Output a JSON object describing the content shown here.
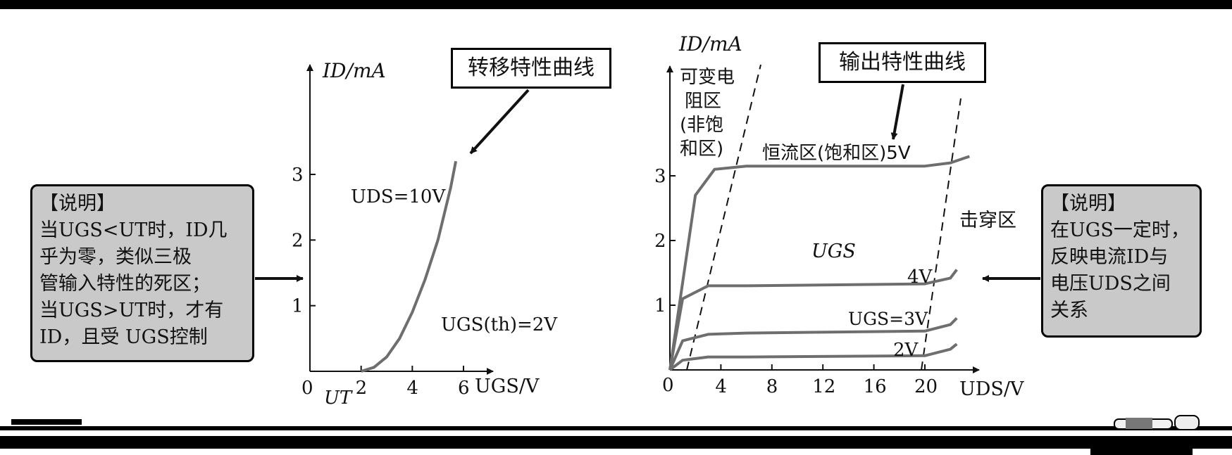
{
  "note_left": {
    "lines": [
      "【说明】",
      "当UGS<UT时，ID几",
      "乎为零，类似三极",
      "管输入特性的死区；",
      "当UGS>UT时，才有",
      "ID，且受 UGS控制"
    ]
  },
  "note_right": {
    "lines": [
      "【说明】",
      "在UGS一定时，",
      "反映电流ID与",
      "电压UDS之间",
      "关系"
    ]
  },
  "transfer": {
    "title": "转移特性曲线",
    "y_axis_label": "ID/mA",
    "x_axis_label": "UGS/V",
    "origin": "0",
    "ut_label": "UT",
    "x_ticks": [
      "2",
      "4",
      "6"
    ],
    "y_ticks": [
      "1",
      "2",
      "3"
    ],
    "uds_label": "UDS=10V",
    "ugs_th_label": "UGS(th)=2V"
  },
  "output": {
    "title": "输出特性曲线",
    "y_axis_label": "ID/mA",
    "x_axis_label": "UDS/V",
    "origin": "0",
    "x_ticks": [
      "4",
      "8",
      "12",
      "16",
      "20"
    ],
    "y_ticks": [
      "1",
      "2",
      "3"
    ],
    "region_variable_lines": [
      "可变电",
      "阻区",
      "(非饱",
      "和区)"
    ],
    "region_constant": "恒流区(饱和区)5V",
    "region_breakdown": "击穿区",
    "ugs_label": "UGS",
    "curve_labels": [
      "4V",
      "UGS=3V",
      "2V"
    ]
  },
  "chart_data": [
    {
      "type": "line",
      "title": "转移特性曲线",
      "xlabel": "UGS/V",
      "ylabel": "ID/mA",
      "xlim": [
        0,
        7
      ],
      "ylim": [
        0,
        4
      ],
      "series": [
        {
          "name": "UDS=10V",
          "x": [
            2,
            2.5,
            3,
            3.5,
            4,
            4.5,
            5,
            5.5,
            5.7
          ],
          "y": [
            0,
            0.06,
            0.22,
            0.5,
            0.9,
            1.4,
            2.0,
            2.8,
            3.2
          ]
        }
      ]
    },
    {
      "type": "line",
      "title": "输出特性曲线",
      "xlabel": "UDS/V",
      "ylabel": "ID/mA",
      "xlim": [
        0,
        24
      ],
      "ylim": [
        0,
        4
      ],
      "series": [
        {
          "name": "5V",
          "x": [
            0,
            2,
            3.5,
            6,
            20,
            22,
            23.5
          ],
          "y": [
            0,
            2.7,
            3.1,
            3.15,
            3.15,
            3.2,
            3.3
          ]
        },
        {
          "name": "4V",
          "x": [
            0,
            1,
            3,
            6,
            20,
            22,
            22.5
          ],
          "y": [
            0,
            1.1,
            1.3,
            1.3,
            1.33,
            1.42,
            1.55
          ]
        },
        {
          "name": "3V",
          "x": [
            0,
            1,
            3,
            6,
            20,
            22,
            22.5
          ],
          "y": [
            0,
            0.45,
            0.55,
            0.57,
            0.6,
            0.7,
            0.8
          ]
        },
        {
          "name": "2V",
          "x": [
            0,
            1,
            3,
            6,
            20,
            22,
            22.5
          ],
          "y": [
            0,
            0.15,
            0.2,
            0.2,
            0.22,
            0.32,
            0.4
          ]
        }
      ]
    }
  ]
}
